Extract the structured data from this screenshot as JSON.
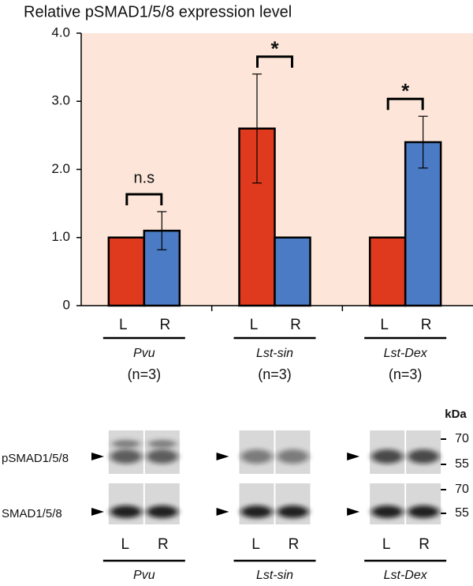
{
  "chart_data": {
    "type": "bar",
    "title": "Relative pSMAD1/5/8 expression level",
    "categories": [
      "Pvu",
      "Lst-sin",
      "Lst-Dex"
    ],
    "group_notes": [
      "(n=3)",
      "(n=3)",
      "(n=3)"
    ],
    "annotations": [
      "n.s",
      "*",
      "*"
    ],
    "series": [
      {
        "name": "L",
        "color": "#e03a1e",
        "values": [
          1.0,
          2.6,
          1.0
        ],
        "errors": [
          null,
          0.8,
          null
        ]
      },
      {
        "name": "R",
        "color": "#4a7bc4",
        "values": [
          1.1,
          1.0,
          2.4
        ],
        "errors": [
          0.28,
          null,
          0.38
        ]
      }
    ],
    "ylim": [
      0,
      4
    ],
    "yticks": [
      0,
      {
        "value": 1,
        "label": "1.0"
      },
      {
        "value": 2,
        "label": "2.0"
      },
      {
        "value": 3,
        "label": "3.0"
      },
      {
        "value": 4,
        "label": "4.0"
      }
    ],
    "grid": false,
    "background": "#fde6d9"
  },
  "blot": {
    "rows": [
      "pSMAD1/5/8",
      "SMAD1/5/8"
    ],
    "unit": "kDa",
    "markers": [
      70,
      55
    ]
  }
}
